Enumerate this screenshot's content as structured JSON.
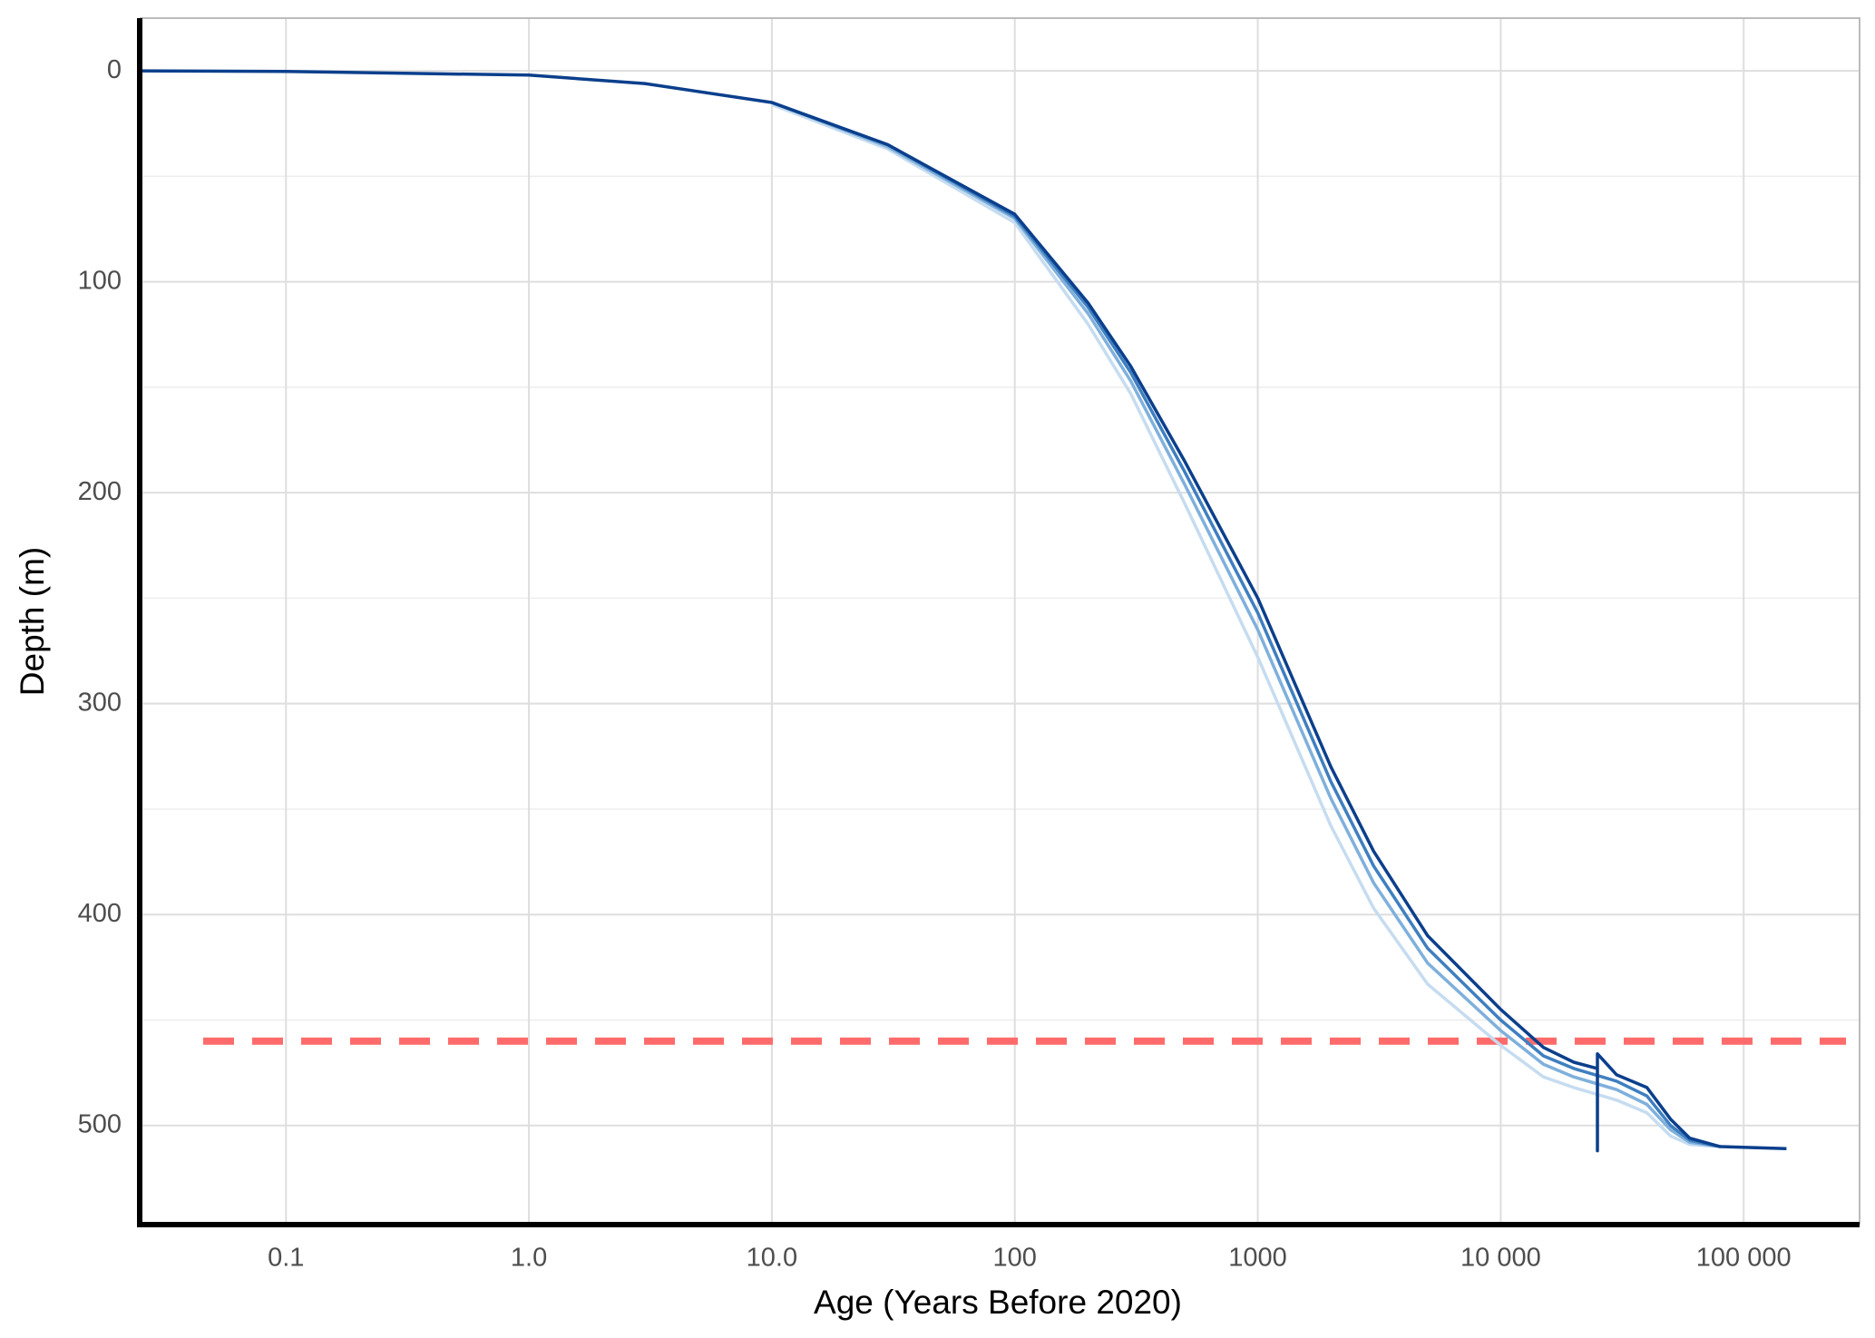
{
  "chart_data": {
    "type": "line",
    "x_label": "Age (Years Before 2020)",
    "y_label": "Depth (m)",
    "x_log": true,
    "y_inverted": true,
    "grid": true,
    "xlim": [
      0.025,
      300000
    ],
    "ylim": [
      -25,
      547
    ],
    "xticks": [
      0.1,
      {
        "value": 1,
        "label": "1.0"
      },
      {
        "value": 10,
        "label": "10.0"
      },
      100,
      1000,
      {
        "value": 10000,
        "label": "10 000"
      },
      {
        "value": 100000,
        "label": "100 000"
      }
    ],
    "yticks": [
      0,
      100,
      200,
      300,
      400,
      500
    ],
    "y_minor_ticks": [
      50,
      150,
      250,
      350,
      450
    ],
    "reference_lines": [
      {
        "y": 460,
        "color": "#ff6b6b",
        "dashed": true
      }
    ],
    "series": [
      {
        "color": "#c6dcf0",
        "x": [
          10,
          30,
          100,
          200,
          300,
          500,
          1000,
          2000,
          3000,
          5000,
          10000,
          15000,
          20000,
          30000,
          40000,
          50000,
          60000,
          80000
        ],
        "values": [
          16,
          37,
          72,
          120,
          153,
          205,
          278,
          358,
          397,
          433,
          462,
          477,
          482,
          488,
          494,
          505,
          509,
          510
        ]
      },
      {
        "color": "#7fb0dc",
        "x": [
          10,
          30,
          100,
          200,
          300,
          500,
          1000,
          2000,
          3000,
          5000,
          10000,
          15000,
          20000,
          30000,
          40000,
          50000,
          60000,
          80000
        ],
        "values": [
          15,
          36,
          70,
          115,
          147,
          196,
          265,
          345,
          385,
          423,
          455,
          471,
          477,
          483,
          490,
          502,
          508,
          510
        ]
      },
      {
        "color": "#3f7fc0",
        "x": [
          10,
          30,
          100,
          200,
          300,
          500,
          1000,
          2000,
          3000,
          5000,
          10000,
          15000,
          20000,
          30000,
          40000,
          50000,
          60000,
          80000
        ],
        "values": [
          15,
          35,
          69,
          112,
          143,
          190,
          257,
          337,
          377,
          416,
          450,
          467,
          473,
          479,
          486,
          500,
          507,
          510
        ]
      },
      {
        "color": "#0b3f8c",
        "x": [
          0.025,
          0.1,
          1,
          3,
          10,
          30,
          100,
          200,
          300,
          500,
          1000,
          2000,
          3000,
          5000,
          10000,
          15000,
          20000,
          25000,
          25000,
          25000,
          30000,
          40000,
          50000,
          60000,
          80000,
          150000
        ],
        "values": [
          0,
          0.3,
          2,
          6,
          15,
          35,
          68,
          110,
          140,
          185,
          250,
          330,
          370,
          410,
          445,
          463,
          470,
          473,
          512,
          466,
          476,
          482,
          497,
          506,
          510,
          511
        ]
      }
    ]
  }
}
